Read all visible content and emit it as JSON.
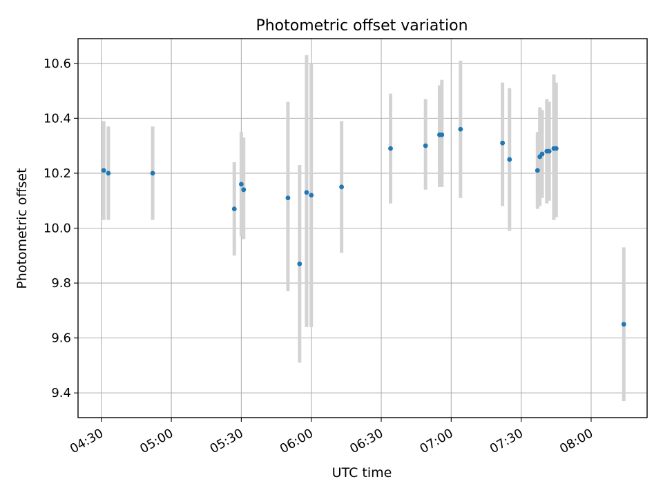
{
  "chart_data": {
    "type": "scatter",
    "title": "Photometric offset variation",
    "xlabel": "UTC time",
    "ylabel": "Photometric offset",
    "x_unit": "time_of_day",
    "x_range": [
      "04:20",
      "08:24"
    ],
    "y_range": [
      9.31,
      10.69
    ],
    "grid": true,
    "x_ticks": [
      "04:30",
      "05:00",
      "05:30",
      "06:00",
      "06:30",
      "07:00",
      "07:30",
      "08:00"
    ],
    "y_ticks": [
      "9.4",
      "9.6",
      "9.8",
      "10.0",
      "10.2",
      "10.4",
      "10.6"
    ],
    "point_color": "#1f77b4",
    "errorbar_color": "#d3d3d3",
    "points": [
      {
        "x": "04:31",
        "y": 10.21,
        "ylow": 10.03,
        "yhigh": 10.39
      },
      {
        "x": "04:33",
        "y": 10.2,
        "ylow": 10.03,
        "yhigh": 10.37
      },
      {
        "x": "04:52",
        "y": 10.2,
        "ylow": 10.03,
        "yhigh": 10.37
      },
      {
        "x": "05:27",
        "y": 10.07,
        "ylow": 9.9,
        "yhigh": 10.24
      },
      {
        "x": "05:30",
        "y": 10.16,
        "ylow": 9.97,
        "yhigh": 10.35
      },
      {
        "x": "05:31",
        "y": 10.14,
        "ylow": 9.96,
        "yhigh": 10.33
      },
      {
        "x": "05:50",
        "y": 10.11,
        "ylow": 9.77,
        "yhigh": 10.46
      },
      {
        "x": "05:55",
        "y": 9.87,
        "ylow": 9.51,
        "yhigh": 10.23
      },
      {
        "x": "05:58",
        "y": 10.13,
        "ylow": 9.64,
        "yhigh": 10.63
      },
      {
        "x": "06:00",
        "y": 10.12,
        "ylow": 9.64,
        "yhigh": 10.6
      },
      {
        "x": "06:13",
        "y": 10.15,
        "ylow": 9.91,
        "yhigh": 10.39
      },
      {
        "x": "06:34",
        "y": 10.29,
        "ylow": 10.09,
        "yhigh": 10.49
      },
      {
        "x": "06:49",
        "y": 10.3,
        "ylow": 10.14,
        "yhigh": 10.47
      },
      {
        "x": "06:55",
        "y": 10.34,
        "ylow": 10.15,
        "yhigh": 10.52
      },
      {
        "x": "06:56",
        "y": 10.34,
        "ylow": 10.15,
        "yhigh": 10.54
      },
      {
        "x": "07:04",
        "y": 10.36,
        "ylow": 10.11,
        "yhigh": 10.61
      },
      {
        "x": "07:22",
        "y": 10.31,
        "ylow": 10.08,
        "yhigh": 10.53
      },
      {
        "x": "07:25",
        "y": 10.25,
        "ylow": 9.99,
        "yhigh": 10.51
      },
      {
        "x": "07:37",
        "y": 10.21,
        "ylow": 10.07,
        "yhigh": 10.35
      },
      {
        "x": "07:38",
        "y": 10.26,
        "ylow": 10.08,
        "yhigh": 10.44
      },
      {
        "x": "07:39",
        "y": 10.27,
        "ylow": 10.11,
        "yhigh": 10.43
      },
      {
        "x": "07:41",
        "y": 10.28,
        "ylow": 10.09,
        "yhigh": 10.47
      },
      {
        "x": "07:42",
        "y": 10.28,
        "ylow": 10.1,
        "yhigh": 10.46
      },
      {
        "x": "07:44",
        "y": 10.29,
        "ylow": 10.03,
        "yhigh": 10.56
      },
      {
        "x": "07:45",
        "y": 10.29,
        "ylow": 10.04,
        "yhigh": 10.53
      },
      {
        "x": "08:14",
        "y": 9.65,
        "ylow": 9.37,
        "yhigh": 9.93
      }
    ]
  }
}
